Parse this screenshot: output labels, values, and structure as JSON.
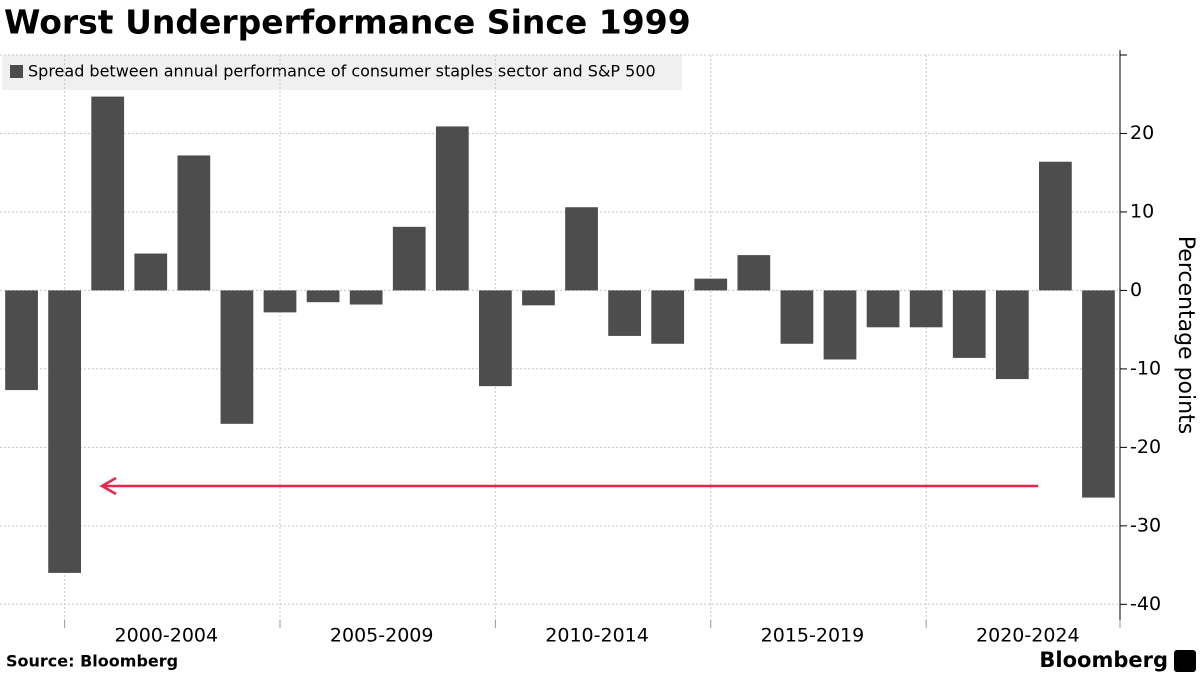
{
  "chart_data": {
    "type": "bar",
    "title": "Worst Underperformance Since 1999",
    "legend": "Spread between annual performance of consumer staples sector and S&P 500",
    "color": "#4d4d4d",
    "categories": [
      null,
      null,
      null,
      null,
      null,
      null,
      null,
      null,
      null,
      null,
      null,
      null,
      null,
      null,
      null,
      null,
      null,
      null,
      null,
      null,
      null,
      null,
      null,
      null,
      null,
      null
    ],
    "values": [
      -12.7,
      -36,
      24.7,
      4.7,
      17.2,
      -17,
      -2.8,
      -1.5,
      -1.8,
      8.1,
      20.9,
      -12.2,
      -1.9,
      10.6,
      -5.8,
      -6.8,
      1.5,
      4.5,
      -6.8,
      -8.8,
      -4.7,
      -4.7,
      -8.6,
      -11.3,
      16.4,
      -26.4
    ],
    "x_groups": [
      "2000-2004",
      "2005-2009",
      "2010-2014",
      "2015-2019",
      "2020-2024"
    ],
    "ylabel": "Percentage points",
    "ylim": [
      -42,
      30
    ],
    "yticks": [
      -40,
      -30,
      -20,
      -10,
      0,
      10,
      20
    ],
    "grid": true,
    "source": "Source: Bloomberg",
    "logo": "Bloomberg"
  }
}
